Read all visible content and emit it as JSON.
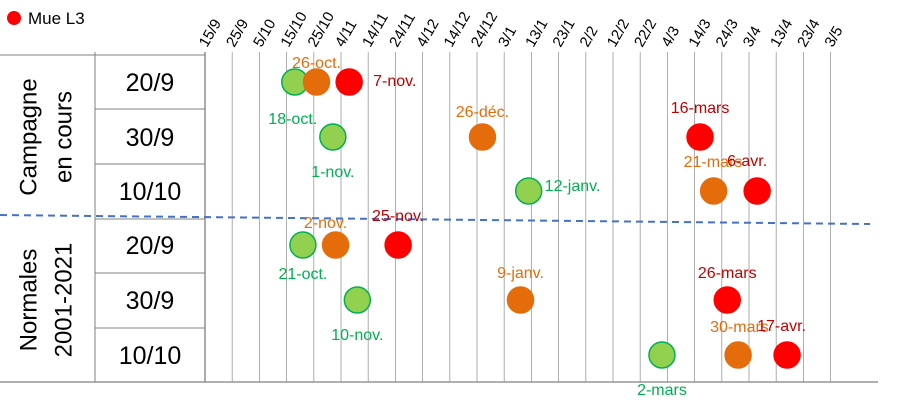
{
  "chart_data": {
    "type": "scatter",
    "title": "",
    "legend": {
      "position": "top-left",
      "entries": [
        {
          "label": "Mue L3",
          "color": "#ff0000"
        }
      ]
    },
    "x_ticks": [
      "15/9",
      "25/9",
      "5/10",
      "15/10",
      "25/10",
      "4/11",
      "14/11",
      "24/11",
      "4/12",
      "14/12",
      "24/12",
      "3/1",
      "13/1",
      "23/1",
      "2/2",
      "12/2",
      "22/2",
      "4/3",
      "14/3",
      "24/3",
      "3/4",
      "13/4",
      "23/4",
      "3/5"
    ],
    "grid": {
      "vertical": true,
      "horizontal": false
    },
    "groups": [
      {
        "label": "Campagne en cours",
        "rows": [
          "20/9",
          "30/9",
          "10/10"
        ]
      },
      {
        "label": "Normales 2001-2021",
        "rows": [
          "20/9",
          "30/9",
          "10/10"
        ]
      }
    ],
    "series_colors": {
      "green": "#92d050",
      "orange": "#e46c0a",
      "red": "#ff0000"
    },
    "points": [
      {
        "group": 0,
        "row": 0,
        "color": "green",
        "x": "18 oct",
        "label": "18-oct."
      },
      {
        "group": 0,
        "row": 0,
        "color": "orange",
        "x": "26 oct",
        "label": "26-oct."
      },
      {
        "group": 0,
        "row": 0,
        "color": "red",
        "x": "7 nov",
        "label": "7-nov."
      },
      {
        "group": 0,
        "row": 1,
        "color": "green",
        "x": "1 nov",
        "label": "1-nov."
      },
      {
        "group": 0,
        "row": 1,
        "color": "orange",
        "x": "26 dec",
        "label": "26-déc."
      },
      {
        "group": 0,
        "row": 1,
        "color": "red",
        "x": "16 mar",
        "label": "16-mars"
      },
      {
        "group": 0,
        "row": 2,
        "color": "green",
        "x": "12 jan",
        "label": "12-janv."
      },
      {
        "group": 0,
        "row": 2,
        "color": "orange",
        "x": "21 mar",
        "label": "21-mars"
      },
      {
        "group": 0,
        "row": 2,
        "color": "red",
        "x": "6 apr",
        "label": "6-avr."
      },
      {
        "group": 1,
        "row": 0,
        "color": "green",
        "x": "21 oct",
        "label": "21-oct."
      },
      {
        "group": 1,
        "row": 0,
        "color": "orange",
        "x": "2 nov",
        "label": "2-nov."
      },
      {
        "group": 1,
        "row": 0,
        "color": "red",
        "x": "25 nov",
        "label": "25-nov."
      },
      {
        "group": 1,
        "row": 1,
        "color": "green",
        "x": "10 nov",
        "label": "10-nov."
      },
      {
        "group": 1,
        "row": 1,
        "color": "orange",
        "x": "9 jan",
        "label": "9-janv."
      },
      {
        "group": 1,
        "row": 1,
        "color": "red",
        "x": "26 mar",
        "label": "26-mars"
      },
      {
        "group": 1,
        "row": 2,
        "color": "green",
        "x": "2 mar",
        "label": "2-mars"
      },
      {
        "group": 1,
        "row": 2,
        "color": "orange",
        "x": "30 mar",
        "label": "30-mars"
      },
      {
        "group": 1,
        "row": 2,
        "color": "red",
        "x": "17 apr",
        "label": "17-avr."
      }
    ]
  }
}
